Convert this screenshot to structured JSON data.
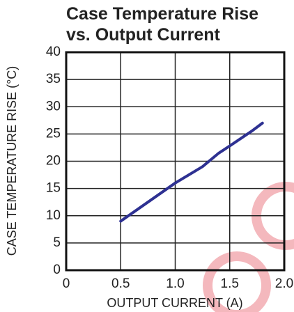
{
  "chart_data": {
    "type": "line",
    "title": [
      "Case Temperature Rise",
      "vs. Output Current"
    ],
    "x_label": "OUTPUT CURRENT (A)",
    "y_label": "CASE TEMPERATURE RISE (°C)",
    "x": [
      0.5,
      0.75,
      1.0,
      1.25,
      1.4,
      1.5,
      1.7,
      1.8
    ],
    "series": [
      {
        "name": "Case Temperature Rise",
        "color": "#2e3192",
        "values": [
          9,
          12.5,
          16,
          19,
          21.5,
          22.8,
          25.5,
          27
        ]
      }
    ],
    "xlim": [
      0,
      2
    ],
    "xticks": [
      0,
      0.5,
      {
        "value": 1,
        "label": "1.0"
      },
      1.5,
      {
        "value": 2,
        "label": "2.0"
      }
    ],
    "ylim": [
      0,
      40
    ],
    "yticks": [
      0,
      5,
      10,
      15,
      20,
      25,
      30,
      35,
      40
    ],
    "grid": true
  }
}
